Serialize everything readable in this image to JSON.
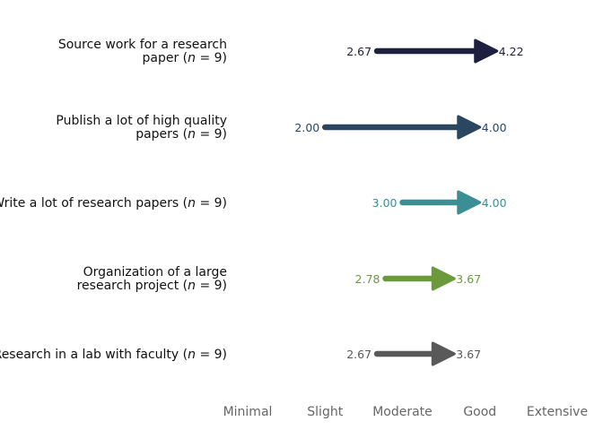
{
  "chart_data": {
    "type": "dumbbell-arrow",
    "title": "",
    "xlabel": "",
    "ylabel": "",
    "x_scale": [
      "Minimal",
      "Slight",
      "Moderate",
      "Good",
      "Extensive"
    ],
    "xlim": [
      1,
      5
    ],
    "grid": false,
    "rows": [
      {
        "label_lines": [
          "Source work for a research",
          "paper (",
          "n",
          " = 9)"
        ],
        "start": 2.67,
        "end": 4.22,
        "start_label": "2.67",
        "end_label": "4.22",
        "color": "#1f1f3f"
      },
      {
        "label_lines": [
          "Publish a lot of high quality",
          "papers (",
          "n",
          " = 9)"
        ],
        "start": 2.0,
        "end": 4.0,
        "start_label": "2.00",
        "end_label": "4.00",
        "color": "#2b4660"
      },
      {
        "label_lines": [
          "",
          "Write a lot of research papers (",
          "n",
          " = 9)"
        ],
        "start": 3.0,
        "end": 4.0,
        "start_label": "3.00",
        "end_label": "4.00",
        "color": "#3a8e94"
      },
      {
        "label_lines": [
          "Organization of a large",
          "research project (",
          "n",
          " = 9)"
        ],
        "start": 2.78,
        "end": 3.67,
        "start_label": "2.78",
        "end_label": "3.67",
        "color": "#6a9a3c"
      },
      {
        "label_lines": [
          "",
          "Research in a lab with faculty (",
          "n",
          " = 9)"
        ],
        "start": 2.67,
        "end": 3.67,
        "start_label": "2.67",
        "end_label": "3.67",
        "color": "#595959"
      }
    ]
  }
}
